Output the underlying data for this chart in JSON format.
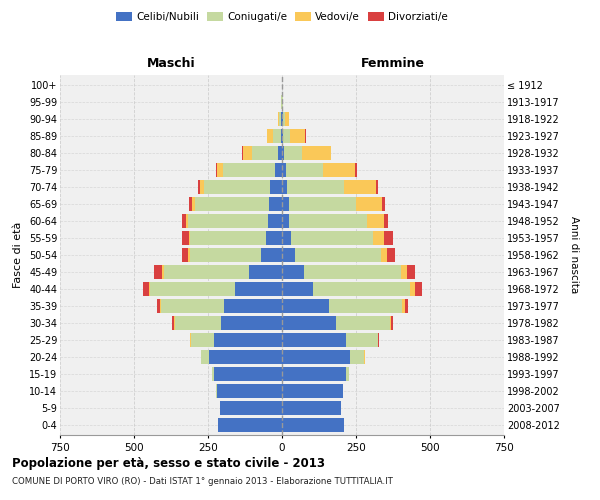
{
  "age_groups": [
    "0-4",
    "5-9",
    "10-14",
    "15-19",
    "20-24",
    "25-29",
    "30-34",
    "35-39",
    "40-44",
    "45-49",
    "50-54",
    "55-59",
    "60-64",
    "65-69",
    "70-74",
    "75-79",
    "80-84",
    "85-89",
    "90-94",
    "95-99",
    "100+"
  ],
  "birth_years": [
    "2008-2012",
    "2003-2007",
    "1998-2002",
    "1993-1997",
    "1988-1992",
    "1983-1987",
    "1978-1982",
    "1973-1977",
    "1968-1972",
    "1963-1967",
    "1958-1962",
    "1953-1957",
    "1948-1952",
    "1943-1947",
    "1938-1942",
    "1933-1937",
    "1928-1932",
    "1923-1927",
    "1918-1922",
    "1913-1917",
    "≤ 1912"
  ],
  "maschi": {
    "celibi": [
      215,
      210,
      220,
      230,
      245,
      230,
      205,
      195,
      160,
      110,
      72,
      55,
      48,
      45,
      40,
      22,
      12,
      4,
      2,
      1,
      0
    ],
    "coniugati": [
      0,
      1,
      2,
      5,
      28,
      78,
      158,
      215,
      285,
      290,
      240,
      255,
      270,
      250,
      225,
      178,
      88,
      28,
      8,
      2,
      0
    ],
    "vedovi": [
      0,
      0,
      0,
      0,
      1,
      2,
      2,
      3,
      5,
      5,
      5,
      5,
      5,
      8,
      12,
      18,
      32,
      18,
      5,
      1,
      0
    ],
    "divorziati": [
      0,
      0,
      0,
      0,
      1,
      2,
      5,
      10,
      20,
      28,
      22,
      22,
      14,
      10,
      8,
      5,
      2,
      2,
      0,
      0,
      0
    ]
  },
  "femmine": {
    "nubili": [
      210,
      200,
      205,
      215,
      230,
      215,
      182,
      158,
      105,
      75,
      45,
      30,
      25,
      22,
      18,
      12,
      8,
      4,
      2,
      1,
      0
    ],
    "coniugate": [
      0,
      1,
      2,
      10,
      48,
      108,
      182,
      248,
      328,
      328,
      288,
      278,
      262,
      228,
      192,
      128,
      58,
      22,
      8,
      2,
      0
    ],
    "vedove": [
      0,
      0,
      0,
      1,
      2,
      3,
      5,
      8,
      15,
      18,
      22,
      38,
      58,
      88,
      108,
      108,
      98,
      52,
      14,
      2,
      0
    ],
    "divorziate": [
      0,
      0,
      0,
      0,
      1,
      2,
      5,
      12,
      25,
      28,
      28,
      28,
      14,
      10,
      8,
      5,
      3,
      2,
      0,
      0,
      0
    ]
  },
  "colors": {
    "celibi": "#4472C4",
    "coniugati": "#C5D9A0",
    "vedovi": "#FAC858",
    "divorziati": "#D94040"
  },
  "xlim": 750,
  "title": "Popolazione per età, sesso e stato civile - 2013",
  "subtitle": "COMUNE DI PORTO VIRO (RO) - Dati ISTAT 1° gennaio 2013 - Elaborazione TUTTITALIA.IT",
  "ylabel_left": "Fasce di età",
  "ylabel_right": "Anni di nascita",
  "legend_labels": [
    "Celibi/Nubili",
    "Coniugati/e",
    "Vedovi/e",
    "Divorziati/e"
  ],
  "background_color": "#f0f0f0",
  "grid_color": "#cccccc"
}
